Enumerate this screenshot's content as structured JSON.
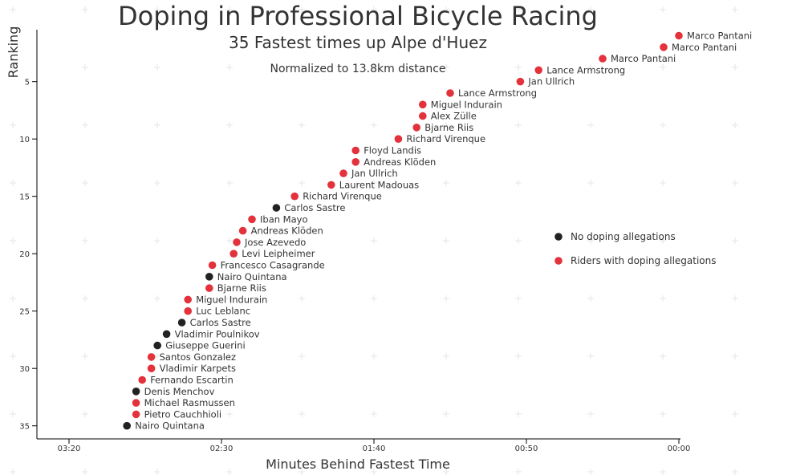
{
  "chart_data": {
    "type": "scatter",
    "title": "Doping in Professional Bicycle Racing",
    "subtitle": "35 Fastest times up Alpe d'Huez",
    "annotation": "Normalized to 13.8km distance",
    "xlabel": "Minutes Behind Fastest Time",
    "ylabel": "Ranking",
    "x_unit": "seconds behind fastest time",
    "x_reversed": true,
    "y_reversed": true,
    "xlim_seconds": [
      0,
      210
    ],
    "ylim": [
      1,
      36
    ],
    "x_ticks": [
      {
        "seconds": 200,
        "label": "03:20"
      },
      {
        "seconds": 150,
        "label": "02:30"
      },
      {
        "seconds": 100,
        "label": "01:40"
      },
      {
        "seconds": 50,
        "label": "00:50"
      },
      {
        "seconds": 0,
        "label": "00:00"
      }
    ],
    "y_ticks": [
      5,
      10,
      15,
      20,
      25,
      30,
      35
    ],
    "grid": "faint crosshair markers",
    "legend_position": "right",
    "legend": [
      {
        "key": "clean",
        "label": "No doping allegations",
        "color": "#222222"
      },
      {
        "key": "doping",
        "label": "Riders with doping allegations",
        "color": "#e3323b"
      }
    ],
    "points": [
      {
        "place": 1,
        "seconds": 0,
        "name": "Marco Pantani",
        "doping": true
      },
      {
        "place": 2,
        "seconds": 5,
        "name": "Marco Pantani",
        "doping": true
      },
      {
        "place": 3,
        "seconds": 25,
        "name": "Marco Pantani",
        "doping": true
      },
      {
        "place": 4,
        "seconds": 46,
        "name": "Lance Armstrong",
        "doping": true
      },
      {
        "place": 5,
        "seconds": 52,
        "name": "Jan Ullrich",
        "doping": true
      },
      {
        "place": 6,
        "seconds": 75,
        "name": "Lance Armstrong",
        "doping": true
      },
      {
        "place": 7,
        "seconds": 84,
        "name": "Miguel Indurain",
        "doping": true
      },
      {
        "place": 8,
        "seconds": 84,
        "name": "Alex Zülle",
        "doping": true
      },
      {
        "place": 9,
        "seconds": 86,
        "name": "Bjarne Riis",
        "doping": true
      },
      {
        "place": 10,
        "seconds": 92,
        "name": "Richard Virenque",
        "doping": true
      },
      {
        "place": 11,
        "seconds": 106,
        "name": "Floyd Landis",
        "doping": true
      },
      {
        "place": 12,
        "seconds": 106,
        "name": "Andreas Klöden",
        "doping": true
      },
      {
        "place": 13,
        "seconds": 110,
        "name": "Jan Ullrich",
        "doping": true
      },
      {
        "place": 14,
        "seconds": 114,
        "name": "Laurent Madouas",
        "doping": true
      },
      {
        "place": 15,
        "seconds": 126,
        "name": "Richard Virenque",
        "doping": true
      },
      {
        "place": 16,
        "seconds": 132,
        "name": "Carlos Sastre",
        "doping": false
      },
      {
        "place": 17,
        "seconds": 140,
        "name": "Iban Mayo",
        "doping": true
      },
      {
        "place": 18,
        "seconds": 143,
        "name": "Andreas Klöden",
        "doping": true
      },
      {
        "place": 19,
        "seconds": 145,
        "name": "Jose Azevedo",
        "doping": true
      },
      {
        "place": 20,
        "seconds": 146,
        "name": "Levi Leipheimer",
        "doping": true
      },
      {
        "place": 21,
        "seconds": 153,
        "name": "Francesco Casagrande",
        "doping": true
      },
      {
        "place": 22,
        "seconds": 154,
        "name": "Nairo Quintana",
        "doping": false
      },
      {
        "place": 23,
        "seconds": 154,
        "name": "Bjarne Riis",
        "doping": true
      },
      {
        "place": 24,
        "seconds": 161,
        "name": "Miguel Indurain",
        "doping": true
      },
      {
        "place": 25,
        "seconds": 161,
        "name": "Luc Leblanc",
        "doping": true
      },
      {
        "place": 26,
        "seconds": 163,
        "name": "Carlos Sastre",
        "doping": false
      },
      {
        "place": 27,
        "seconds": 168,
        "name": "Vladimir Poulnikov",
        "doping": false
      },
      {
        "place": 28,
        "seconds": 171,
        "name": "Giuseppe Guerini",
        "doping": false
      },
      {
        "place": 29,
        "seconds": 173,
        "name": "Santos Gonzalez",
        "doping": true
      },
      {
        "place": 30,
        "seconds": 173,
        "name": "Vladimir Karpets",
        "doping": true
      },
      {
        "place": 31,
        "seconds": 176,
        "name": "Fernando Escartin",
        "doping": true
      },
      {
        "place": 32,
        "seconds": 178,
        "name": "Denis Menchov",
        "doping": false
      },
      {
        "place": 33,
        "seconds": 178,
        "name": "Michael Rasmussen",
        "doping": true
      },
      {
        "place": 34,
        "seconds": 178,
        "name": "Pietro Cauchhioli",
        "doping": true
      },
      {
        "place": 35,
        "seconds": 181,
        "name": "Nairo Quintana",
        "doping": false
      }
    ]
  }
}
